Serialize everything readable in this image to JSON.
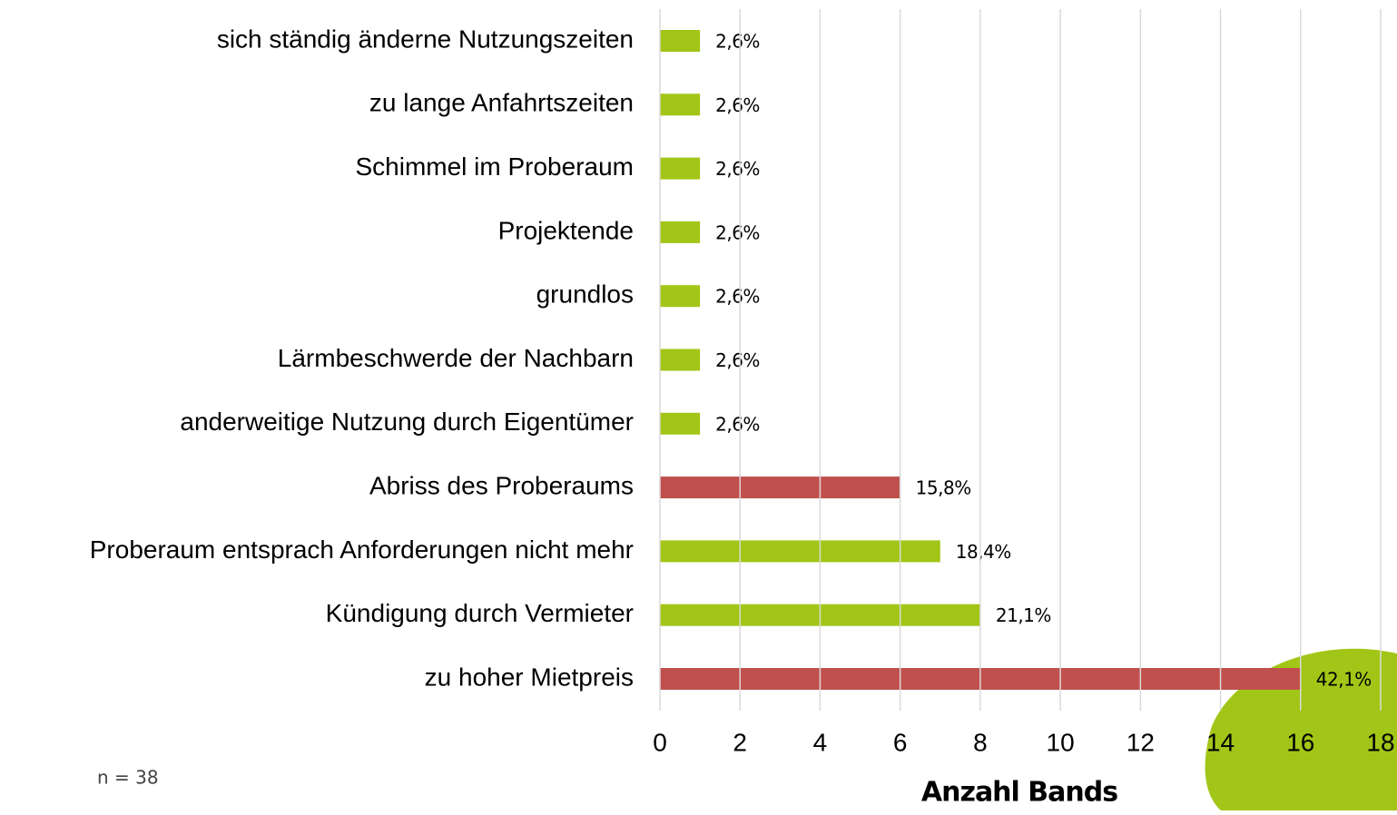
{
  "chart_data": {
    "type": "bar",
    "orientation": "horizontal",
    "categories": [
      "sich ständig änderne Nutzungszeiten",
      "zu lange Anfahrtszeiten",
      "Schimmel im Proberaum",
      "Projektende",
      "grundlos",
      "Lärmbeschwerde der Nachbarn",
      "anderweitige Nutzung durch Eigentümer",
      "Abriss des Proberaums",
      "Proberaum entsprach Anforderungen nicht mehr",
      "Kündigung durch Vermieter",
      "zu hoher Mietpreis"
    ],
    "values": [
      1,
      1,
      1,
      1,
      1,
      1,
      1,
      6,
      7,
      8,
      16
    ],
    "value_labels": [
      "2,6%",
      "2,6%",
      "2,6%",
      "2,6%",
      "2,6%",
      "2,6%",
      "2,6%",
      "15,8%",
      "18,4%",
      "21,1%",
      "42,1%"
    ],
    "colors": [
      "#a2c617",
      "#a2c617",
      "#a2c617",
      "#a2c617",
      "#a2c617",
      "#a2c617",
      "#a2c617",
      "#c0504d",
      "#a2c617",
      "#a2c617",
      "#c0504d"
    ],
    "xlim": [
      0,
      18
    ],
    "xticks": [
      0,
      2,
      4,
      6,
      8,
      10,
      12,
      14,
      16,
      18
    ],
    "grid": true,
    "xlabel": "Anzahl Bands",
    "note": "n = 38"
  }
}
